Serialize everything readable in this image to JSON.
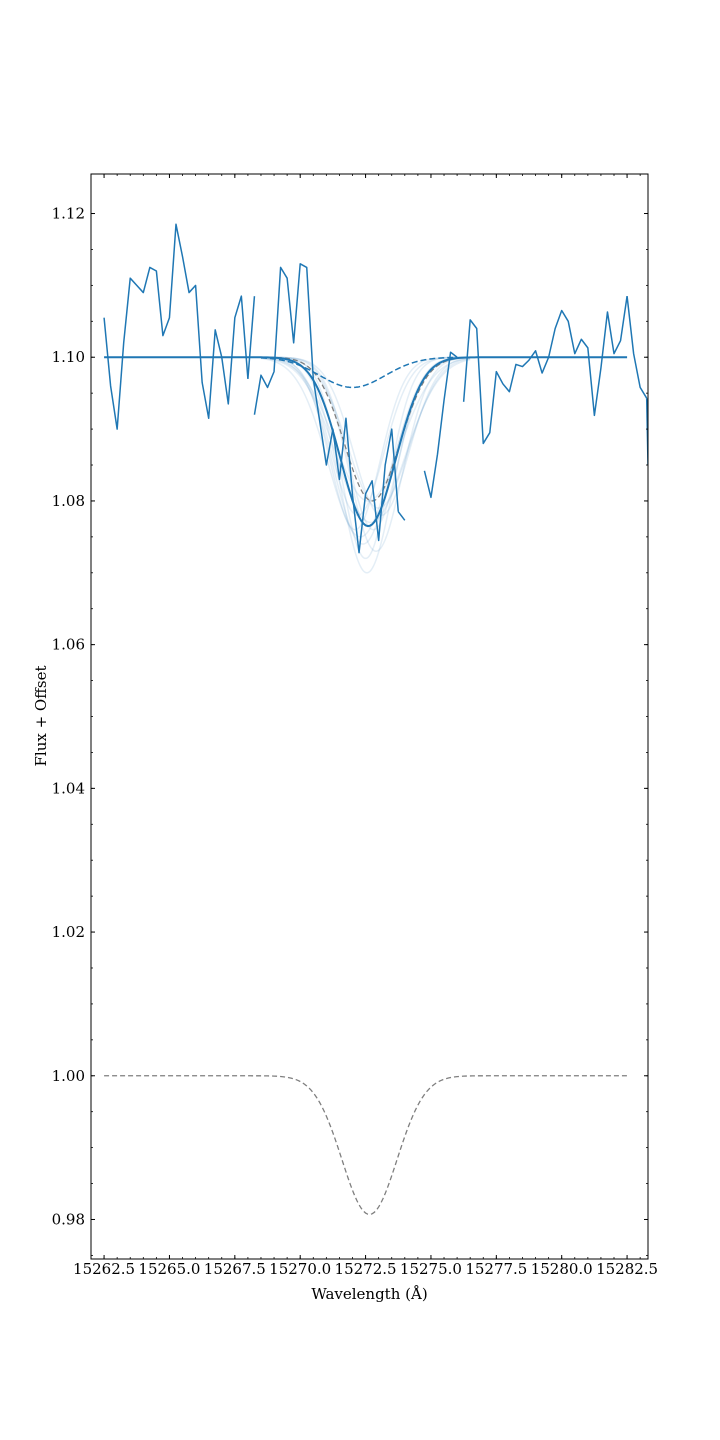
{
  "chart_data": {
    "type": "line",
    "xlabel": "Wavelength (Å)",
    "ylabel": "Flux + Offset",
    "xlim": [
      15262,
      15283.3
    ],
    "ylim": [
      0.9745,
      1.1255
    ],
    "xticks": [
      15262.5,
      15265.0,
      15267.5,
      15270.0,
      15272.5,
      15275.0,
      15277.5,
      15280.0,
      15282.5
    ],
    "xtick_labels": [
      "15262.5",
      "15265.0",
      "15267.5",
      "15270.0",
      "15272.5",
      "15275.0",
      "15277.5",
      "15280.0",
      "15282.5"
    ],
    "yticks": [
      0.98,
      1.0,
      1.02,
      1.04,
      1.06,
      1.08,
      1.1,
      1.12
    ],
    "ytick_labels": [
      "0.98",
      "1.00",
      "1.02",
      "1.04",
      "1.06",
      "1.08",
      "1.10",
      "1.12"
    ],
    "grid": false,
    "colors": {
      "data": "#1f77b4",
      "model_gray": "#7f7f7f"
    },
    "series": [
      {
        "role": "observed-spectrum",
        "style": "solid",
        "segments": [
          {
            "x": [
              15262.5,
              15262.75,
              15263.0,
              15263.25,
              15263.5,
              15263.75,
              15264.0,
              15264.25,
              15264.5,
              15264.75,
              15265.0,
              15265.25,
              15265.5,
              15265.75,
              15266.0,
              15266.25,
              15266.5,
              15266.75,
              15267.0,
              15267.25,
              15267.5,
              15267.75,
              15268.0
            ],
            "y": [
              1.1055,
              1.096,
              1.09,
              1.102,
              1.111,
              1.11,
              1.109,
              1.1125,
              1.112,
              1.103,
              1.1055,
              1.1185,
              1.114,
              1.109,
              1.11,
              1.0965,
              1.0915,
              1.1038,
              1.1,
              1.0935,
              1.1055,
              1.1085,
              1.097
            ]
          },
          {
            "x": [
              15268.0,
              15268.25
            ],
            "y": [
              1.097,
              1.1085
            ]
          },
          {
            "x": [
              15268.25,
              15268.5,
              15268.75,
              15269.0,
              15269.25,
              15269.5,
              15269.75,
              15270.0,
              15270.25,
              15270.5,
              15270.75,
              15271.0,
              15271.25,
              15271.5,
              15271.75,
              15272.0,
              15272.25,
              15272.5,
              15272.75,
              15273.0,
              15273.25,
              15273.5,
              15273.75
            ],
            "y": [
              1.092,
              1.0975,
              1.0958,
              1.098,
              1.1125,
              1.111,
              1.102,
              1.113,
              1.1125,
              1.097,
              1.091,
              1.085,
              1.09,
              1.083,
              1.0915,
              1.0808,
              1.0728,
              1.081,
              1.0828,
              1.0745,
              1.085,
              1.09,
              1.0785
            ]
          },
          {
            "x": [
              15273.75,
              15274.0
            ],
            "y": [
              1.0785,
              1.0773
            ]
          },
          {
            "x": [
              15274.75,
              15275.0,
              15275.25,
              15275.5,
              15275.75,
              15276.0
            ],
            "y": [
              1.0842,
              1.0805,
              1.0865,
              1.094,
              1.1007,
              1.1
            ]
          },
          {
            "x": [
              15276.25,
              15276.5,
              15276.75,
              15277.0,
              15277.25,
              15277.5,
              15277.75,
              15278.0,
              15278.25,
              15278.5,
              15278.75,
              15279.0,
              15279.25,
              15279.5,
              15279.75,
              15280.0,
              15280.25,
              15280.5,
              15280.75,
              15281.0,
              15281.25,
              15281.5,
              15281.75,
              15282.0,
              15282.25,
              15282.5
            ],
            "y": [
              1.0938,
              1.1052,
              1.104,
              1.088,
              1.0895,
              1.098,
              1.0963,
              1.0952,
              1.099,
              1.0987,
              1.0996,
              1.1009,
              1.0978,
              1.1,
              1.104,
              1.1065,
              1.105,
              1.1005,
              1.1025,
              1.1013,
              1.0919,
              1.0985,
              1.1063,
              1.1005,
              1.1023,
              1.1085
            ]
          },
          {
            "x": [
              15282.5,
              15282.75,
              15283.0,
              15283.25
            ],
            "y": [
              1.1085,
              1.1005,
              1.0958,
              1.0943
            ]
          },
          {
            "x": [
              15283.25,
              15283.3
            ],
            "y": [
              1.0943,
              1.085
            ]
          }
        ]
      },
      {
        "role": "best-fit-absorption-line",
        "style": "solid",
        "continuum": 1.1,
        "center": 15272.6,
        "depth": 0.0235,
        "sigma": 1.05,
        "x_range": [
          15262.5,
          15282.5
        ]
      },
      {
        "role": "component-model-blue-dashed",
        "style": "dashed",
        "continuum": 1.1,
        "center": 15272.0,
        "depth": 0.0042,
        "sigma": 1.25,
        "x_range": [
          15268.5,
          15276.0
        ]
      },
      {
        "role": "component-model-gray-dashed-upper",
        "style": "dashed",
        "continuum": 1.1,
        "center": 15272.75,
        "depth": 0.02,
        "sigma": 1.05,
        "x_range": [
          15268.5,
          15276.0
        ]
      },
      {
        "role": "component-model-gray-dashed-lower",
        "style": "dashed",
        "continuum": 1.0,
        "center": 15272.65,
        "depth": 0.0193,
        "sigma": 1.05,
        "x_range": [
          15262.5,
          15282.5
        ]
      },
      {
        "role": "posterior-samples",
        "style": "faint",
        "continuum": 1.1,
        "samples": [
          {
            "center": 15272.2,
            "depth": 0.022,
            "sigma": 1.0
          },
          {
            "center": 15272.4,
            "depth": 0.026,
            "sigma": 1.1
          },
          {
            "center": 15272.8,
            "depth": 0.024,
            "sigma": 0.95
          },
          {
            "center": 15273.0,
            "depth": 0.021,
            "sigma": 1.15
          },
          {
            "center": 15272.5,
            "depth": 0.028,
            "sigma": 0.9
          },
          {
            "center": 15272.6,
            "depth": 0.02,
            "sigma": 1.25
          },
          {
            "center": 15272.3,
            "depth": 0.025,
            "sigma": 1.2
          },
          {
            "center": 15272.9,
            "depth": 0.027,
            "sigma": 1.0
          },
          {
            "center": 15272.7,
            "depth": 0.023,
            "sigma": 1.3
          },
          {
            "center": 15272.1,
            "depth": 0.024,
            "sigma": 0.95
          },
          {
            "center": 15273.1,
            "depth": 0.022,
            "sigma": 1.05
          },
          {
            "center": 15272.55,
            "depth": 0.03,
            "sigma": 1.0
          }
        ]
      }
    ]
  }
}
